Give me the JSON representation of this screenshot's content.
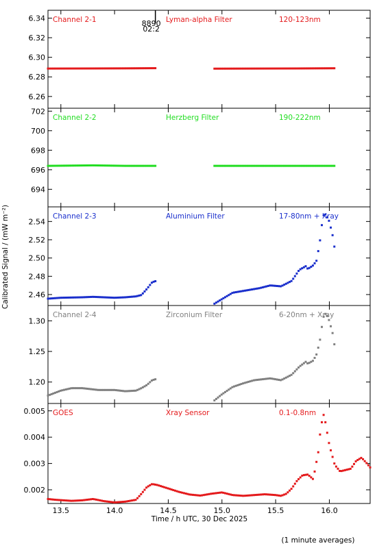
{
  "chart_data": {
    "type": "scatter",
    "x_axis": {
      "label": "Time / h UTC, 30 Dec 2025",
      "range": [
        13.38,
        16.38
      ],
      "ticks": [
        13.5,
        14.0,
        14.5,
        15.0,
        15.5,
        16.0
      ],
      "tick_labels": [
        "13.5",
        "14.0",
        "14.5",
        "15.0",
        "15.5",
        "16.0"
      ]
    },
    "y_axis_label": "Calibrated Signal / (mW m⁻²)",
    "marker": {
      "time": 14.38,
      "label_top": "8890",
      "label_bottom": "02:2"
    },
    "footnote": "(1 minute averages)",
    "panels": [
      {
        "channel": "Channel 2-1",
        "filter": "Lyman-alpha Filter",
        "band": "120-123nm",
        "color": "#e41a1c",
        "ylim": [
          6.248,
          6.348
        ],
        "ticks": [
          6.26,
          6.28,
          6.3,
          6.32,
          6.34
        ],
        "tick_labels": [
          "6.26",
          "6.28",
          "6.30",
          "6.32",
          "6.34"
        ],
        "segments": [
          {
            "x": [
              13.38,
              13.8,
              14.1,
              14.39
            ],
            "y": [
              6.2885,
              6.2886,
              6.2887,
              6.2889
            ]
          },
          {
            "x": [
              14.93,
              15.3,
              15.7,
              16.05
            ],
            "y": [
              6.2884,
              6.2885,
              6.2886,
              6.2888
            ]
          }
        ]
      },
      {
        "channel": "Channel 2-2",
        "filter": "Herzberg Filter",
        "band": "190-222nm",
        "color": "#22dd22",
        "ylim": [
          692.2,
          702.3
        ],
        "ticks": [
          694,
          696,
          698,
          700,
          702
        ],
        "tick_labels": [
          "694",
          "696",
          "698",
          "700",
          "702"
        ],
        "segments": [
          {
            "x": [
              13.38,
              13.8,
              14.1,
              14.39
            ],
            "y": [
              696.4,
              696.45,
              696.4,
              696.4
            ]
          },
          {
            "x": [
              14.93,
              15.3,
              15.7,
              16.05
            ],
            "y": [
              696.4,
              696.4,
              696.4,
              696.4
            ]
          }
        ]
      },
      {
        "channel": "Channel 2-3",
        "filter": "Aluminium Filter",
        "band": "17-80nm + Xray",
        "color": "#1a2fcc",
        "ylim": [
          2.448,
          2.556
        ],
        "ticks": [
          2.46,
          2.48,
          2.5,
          2.52,
          2.54
        ],
        "tick_labels": [
          "2.46",
          "2.48",
          "2.50",
          "2.52",
          "2.54"
        ],
        "segments": [
          {
            "x": [
              13.38,
              13.5,
              13.7,
              13.8,
              14.0,
              14.1,
              14.2,
              14.25,
              14.3,
              14.35,
              14.39
            ],
            "y": [
              2.4555,
              2.4565,
              2.457,
              2.4575,
              2.4565,
              2.457,
              2.458,
              2.4595,
              2.466,
              2.4735,
              2.475
            ]
          },
          {
            "x": [
              14.93,
              15.0,
              15.1,
              15.2,
              15.35,
              15.45,
              15.55,
              15.65,
              15.72,
              15.78,
              15.8,
              15.85,
              15.88,
              15.91,
              15.93,
              15.95,
              15.97,
              16.0,
              16.03,
              16.05
            ],
            "y": [
              2.45,
              2.455,
              2.462,
              2.464,
              2.467,
              2.47,
              2.469,
              2.475,
              2.487,
              2.491,
              2.488,
              2.492,
              2.497,
              2.516,
              2.536,
              2.549,
              2.547,
              2.54,
              2.525,
              2.51
            ]
          }
        ]
      },
      {
        "channel": "Channel 2-4",
        "filter": "Zirconium Filter",
        "band": "6-20nm + Xray",
        "color": "#808080",
        "ylim": [
          1.165,
          1.325
        ],
        "ticks": [
          1.2,
          1.25,
          1.3
        ],
        "tick_labels": [
          "1.20",
          "1.25",
          "1.30"
        ],
        "segments": [
          {
            "x": [
              13.38,
              13.5,
              13.6,
              13.7,
              13.85,
              14.0,
              14.1,
              14.2,
              14.25,
              14.3,
              14.35,
              14.39
            ],
            "y": [
              1.178,
              1.186,
              1.19,
              1.19,
              1.187,
              1.187,
              1.185,
              1.186,
              1.19,
              1.195,
              1.203,
              1.205
            ]
          },
          {
            "x": [
              14.93,
              15.0,
              15.1,
              15.2,
              15.3,
              15.45,
              15.55,
              15.65,
              15.72,
              15.78,
              15.8,
              15.85,
              15.88,
              15.91,
              15.93,
              15.95,
              15.97,
              16.0,
              16.03,
              16.05
            ],
            "y": [
              1.17,
              1.18,
              1.192,
              1.198,
              1.203,
              1.206,
              1.203,
              1.212,
              1.225,
              1.233,
              1.23,
              1.235,
              1.245,
              1.265,
              1.29,
              1.31,
              1.312,
              1.3,
              1.28,
              1.258
            ]
          }
        ]
      },
      {
        "channel": "GOES",
        "filter": "Xray Sensor",
        "band": "0.1-0.8nm",
        "color": "#e41a1c",
        "ylim": [
          0.00148,
          0.00528
        ],
        "ticks": [
          0.002,
          0.003,
          0.004,
          0.005
        ],
        "tick_labels": [
          "0.002",
          "0.003",
          "0.004",
          "0.005"
        ],
        "segments": [
          {
            "x": [
              13.38,
              13.45,
              13.6,
              13.7,
              13.8,
              13.9,
              14.0,
              14.1,
              14.2,
              14.25,
              14.3,
              14.35,
              14.4,
              14.5,
              14.6,
              14.7,
              14.8,
              14.9,
              15.0,
              15.1,
              15.2,
              15.3,
              15.4,
              15.5,
              15.55,
              15.6,
              15.65,
              15.7,
              15.75,
              15.8,
              15.85,
              15.9,
              15.92,
              15.95,
              15.97,
              16.0,
              16.05,
              16.1,
              16.15,
              16.2,
              16.25,
              16.3,
              16.35,
              16.38
            ],
            "y": [
              0.00165,
              0.00162,
              0.00158,
              0.0016,
              0.00165,
              0.00157,
              0.00152,
              0.00155,
              0.00162,
              0.00185,
              0.0021,
              0.00222,
              0.00218,
              0.00205,
              0.00192,
              0.00182,
              0.00178,
              0.00185,
              0.0019,
              0.0018,
              0.00177,
              0.0018,
              0.00183,
              0.0018,
              0.00177,
              0.00185,
              0.00205,
              0.00235,
              0.00255,
              0.00258,
              0.0024,
              0.0035,
              0.0044,
              0.0049,
              0.0044,
              0.0037,
              0.00295,
              0.0027,
              0.00275,
              0.0028,
              0.0031,
              0.00322,
              0.003,
              0.00285
            ]
          }
        ]
      }
    ]
  }
}
